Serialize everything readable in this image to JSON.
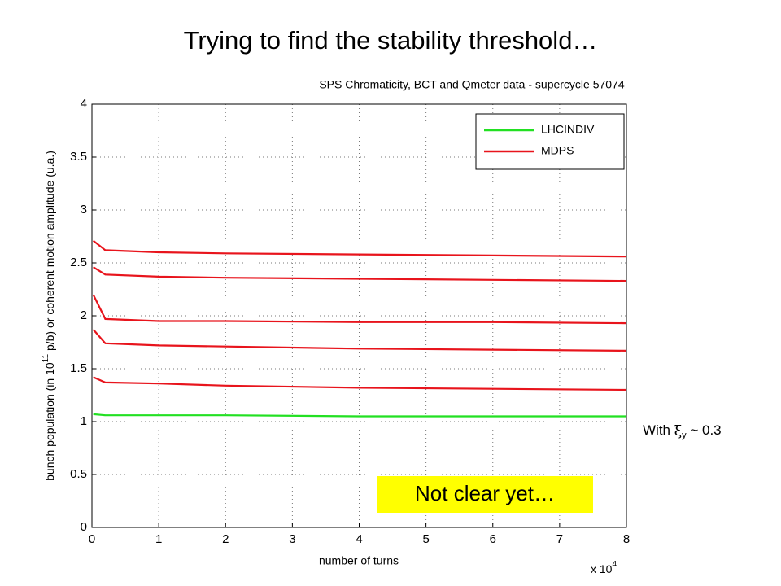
{
  "slide_title": "Trying to find the stability threshold…",
  "notes": {
    "condition": {
      "prefix": "With ",
      "symbol": "ξ",
      "subscript": "y",
      "suffix": " ~ 0.3"
    },
    "status": "Not clear yet…"
  },
  "chart_data": {
    "type": "line",
    "title": "SPS Chromaticity, BCT and Qmeter data - supercycle 57074",
    "xlabel": "number of turns",
    "x_multiplier": {
      "base": "x 10",
      "exponent": "4"
    },
    "ylabel": {
      "before": "bunch population (in 10",
      "exponent": "11",
      "after": " p/b) or coherent motion amplitude (u.a.)"
    },
    "x": [
      0.02,
      0.2,
      1,
      2,
      4,
      6,
      8
    ],
    "series": [
      {
        "name": "LHCINDIV",
        "color": "#22e022",
        "values": [
          1.07,
          1.06,
          1.06,
          1.06,
          1.05,
          1.05,
          1.05
        ]
      },
      {
        "name": "MDPS",
        "color": "#e8141c",
        "x": [
          0.02,
          0.2,
          1,
          2,
          4,
          6,
          8,
          null,
          0.02,
          0.2,
          1,
          2,
          4,
          6,
          8,
          null,
          0.02,
          0.2,
          1,
          2,
          4,
          6,
          8,
          null,
          0.02,
          0.2,
          1,
          2,
          4,
          6,
          8,
          null,
          0.02,
          0.2,
          1,
          2,
          4,
          6,
          8
        ],
        "values": [
          2.71,
          2.62,
          2.6,
          2.59,
          2.58,
          2.57,
          2.56,
          null,
          2.46,
          2.39,
          2.37,
          2.36,
          2.35,
          2.34,
          2.33,
          null,
          2.2,
          1.97,
          1.95,
          1.95,
          1.94,
          1.94,
          1.93,
          null,
          1.87,
          1.74,
          1.72,
          1.71,
          1.69,
          1.68,
          1.67,
          null,
          1.42,
          1.37,
          1.36,
          1.34,
          1.32,
          1.31,
          1.3
        ]
      }
    ],
    "xlim": [
      0,
      8
    ],
    "xticks": [
      0,
      1,
      2,
      3,
      4,
      5,
      6,
      7,
      8
    ],
    "ylim": [
      0,
      4
    ],
    "yticks": [
      0,
      0.5,
      1,
      1.5,
      2,
      2.5,
      3,
      3.5,
      4
    ],
    "grid": true,
    "legend": "upper right"
  }
}
